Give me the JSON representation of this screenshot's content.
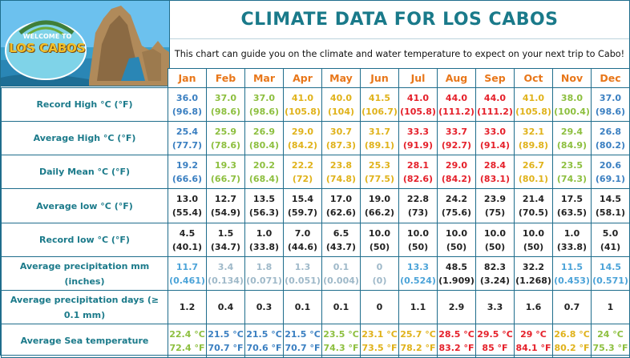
{
  "header": {
    "title": "CLIMATE DATA FOR LOS CABOS",
    "subtitle": "This chart can guide you on the climate and water temperature to expect on your next trip to Cabo!",
    "logo_top": "WELCOME TO",
    "logo_main": "LOS CABOS"
  },
  "months": [
    "Jan",
    "Feb",
    "Mar",
    "Apr",
    "May",
    "Jun",
    "Jul",
    "Aug",
    "Sep",
    "Oct",
    "Nov",
    "Dec"
  ],
  "colors": {
    "cool": "#3a7fc1",
    "mild": "#8dbf3f",
    "warm": "#e0b21a",
    "hot": "#e5202a",
    "dark": "#222222",
    "pale": "#9fb9c9",
    "month": "#e8771a",
    "label": "#1b7a8a"
  },
  "rows": [
    {
      "label": "Record High °C (°F)",
      "cells": [
        {
          "a": "36.0",
          "b": "(96.8)",
          "c": "cool"
        },
        {
          "a": "37.0",
          "b": "(98.6)",
          "c": "mild"
        },
        {
          "a": "37.0",
          "b": "(98.6)",
          "c": "mild"
        },
        {
          "a": "41.0",
          "b": "(105.8)",
          "c": "warm"
        },
        {
          "a": "40.0",
          "b": "(104)",
          "c": "warm"
        },
        {
          "a": "41.5",
          "b": "(106.7)",
          "c": "warm"
        },
        {
          "a": "41.0",
          "b": "(105.8)",
          "c": "hot"
        },
        {
          "a": "44.0",
          "b": "(111.2)",
          "c": "hot"
        },
        {
          "a": "44.0",
          "b": "(111.2)",
          "c": "hot"
        },
        {
          "a": "41.0",
          "b": "(105.8)",
          "c": "warm"
        },
        {
          "a": "38.0",
          "b": "(100.4)",
          "c": "mild"
        },
        {
          "a": "37.0",
          "b": "(98.6)",
          "c": "cool"
        }
      ]
    },
    {
      "label": "Average High °C (°F)",
      "cells": [
        {
          "a": "25.4",
          "b": "(77.7)",
          "c": "cool"
        },
        {
          "a": "25.9",
          "b": "(78.6)",
          "c": "mild"
        },
        {
          "a": "26.9",
          "b": "(80.4)",
          "c": "mild"
        },
        {
          "a": "29.0",
          "b": "(84.2)",
          "c": "warm"
        },
        {
          "a": "30.7",
          "b": "(87.3)",
          "c": "warm"
        },
        {
          "a": "31.7",
          "b": "(89.1)",
          "c": "warm"
        },
        {
          "a": "33.3",
          "b": "(91.9)",
          "c": "hot"
        },
        {
          "a": "33.7",
          "b": "(92.7)",
          "c": "hot"
        },
        {
          "a": "33.0",
          "b": "(91.4)",
          "c": "hot"
        },
        {
          "a": "32.1",
          "b": "(89.8)",
          "c": "warm"
        },
        {
          "a": "29.4",
          "b": "(84.9)",
          "c": "mild"
        },
        {
          "a": "26.8",
          "b": "(80.2)",
          "c": "cool"
        }
      ]
    },
    {
      "label": "Daily Mean °C (°F)",
      "cells": [
        {
          "a": "19.2",
          "b": "(66.6)",
          "c": "cool"
        },
        {
          "a": "19.3",
          "b": "(66.7)",
          "c": "mild"
        },
        {
          "a": "20.2",
          "b": "(68.4)",
          "c": "mild"
        },
        {
          "a": "22.2",
          "b": "(72)",
          "c": "warm"
        },
        {
          "a": "23.8",
          "b": "(74.8)",
          "c": "warm"
        },
        {
          "a": "25.3",
          "b": "(77.5)",
          "c": "warm"
        },
        {
          "a": "28.1",
          "b": "(82.6)",
          "c": "hot"
        },
        {
          "a": "29.0",
          "b": "(84.2)",
          "c": "hot"
        },
        {
          "a": "28.4",
          "b": "(83.1)",
          "c": "hot"
        },
        {
          "a": "26.7",
          "b": "(80.1)",
          "c": "warm"
        },
        {
          "a": "23.5",
          "b": "(74.3)",
          "c": "mild"
        },
        {
          "a": "20.6",
          "b": "(69.1)",
          "c": "cool"
        }
      ]
    },
    {
      "label": "Average low °C (°F)",
      "cells": [
        {
          "a": "13.0",
          "b": "(55.4)",
          "c": "dark"
        },
        {
          "a": "12.7",
          "b": "(54.9)",
          "c": "dark"
        },
        {
          "a": "13.5",
          "b": "(56.3)",
          "c": "dark"
        },
        {
          "a": "15.4",
          "b": "(59.7)",
          "c": "dark"
        },
        {
          "a": "17.0",
          "b": "(62.6)",
          "c": "dark"
        },
        {
          "a": "19.0",
          "b": "(66.2)",
          "c": "dark"
        },
        {
          "a": "22.8",
          "b": "(73)",
          "c": "dark"
        },
        {
          "a": "24.2",
          "b": "(75.6)",
          "c": "dark"
        },
        {
          "a": "23.9",
          "b": "(75)",
          "c": "dark"
        },
        {
          "a": "21.4",
          "b": "(70.5)",
          "c": "dark"
        },
        {
          "a": "17.5",
          "b": "(63.5)",
          "c": "dark"
        },
        {
          "a": "14.5",
          "b": "(58.1)",
          "c": "dark"
        }
      ]
    },
    {
      "label": "Record low °C (°F)",
      "cells": [
        {
          "a": "4.5",
          "b": "(40.1)",
          "c": "dark"
        },
        {
          "a": "1.5",
          "b": "(34.7)",
          "c": "dark"
        },
        {
          "a": "1.0",
          "b": "(33.8)",
          "c": "dark"
        },
        {
          "a": "7.0",
          "b": "(44.6)",
          "c": "dark"
        },
        {
          "a": "6.5",
          "b": "(43.7)",
          "c": "dark"
        },
        {
          "a": "10.0",
          "b": "(50)",
          "c": "dark"
        },
        {
          "a": "10.0",
          "b": "(50)",
          "c": "dark"
        },
        {
          "a": "10.0",
          "b": "(50)",
          "c": "dark"
        },
        {
          "a": "10.0",
          "b": "(50)",
          "c": "dark"
        },
        {
          "a": "10.0",
          "b": "(50)",
          "c": "dark"
        },
        {
          "a": "1.0",
          "b": "(33.8)",
          "c": "dark"
        },
        {
          "a": "5.0",
          "b": "(41)",
          "c": "dark"
        }
      ]
    },
    {
      "label": "Average precipitation mm (inches)",
      "cells": [
        {
          "a": "11.7",
          "b": "(0.461)",
          "c": "cool2"
        },
        {
          "a": "3.4",
          "b": "(0.134)",
          "c": "pale"
        },
        {
          "a": "1.8",
          "b": "(0.071)",
          "c": "pale"
        },
        {
          "a": "1.3",
          "b": "(0.051)",
          "c": "pale"
        },
        {
          "a": "0.1",
          "b": "(0.004)",
          "c": "pale"
        },
        {
          "a": "0",
          "b": "(0)",
          "c": "pale"
        },
        {
          "a": "13.3",
          "b": "(0.524)",
          "c": "cool2"
        },
        {
          "a": "48.5",
          "b": "(1.909)",
          "c": "dark"
        },
        {
          "a": "82.3",
          "b": "(3.24)",
          "c": "dark"
        },
        {
          "a": "32.2",
          "b": "(1.268)",
          "c": "dark"
        },
        {
          "a": "11.5",
          "b": "(0.453)",
          "c": "cool2"
        },
        {
          "a": "14.5",
          "b": "(0.571)",
          "c": "cool2"
        }
      ]
    },
    {
      "label": "Average precipitation days (≥ 0.1 mm)",
      "cells": [
        {
          "a": "1.2",
          "b": "",
          "c": "dark"
        },
        {
          "a": "0.4",
          "b": "",
          "c": "dark"
        },
        {
          "a": "0.3",
          "b": "",
          "c": "dark"
        },
        {
          "a": "0.1",
          "b": "",
          "c": "dark"
        },
        {
          "a": "0.1",
          "b": "",
          "c": "dark"
        },
        {
          "a": "0",
          "b": "",
          "c": "dark"
        },
        {
          "a": "1.1",
          "b": "",
          "c": "dark"
        },
        {
          "a": "2.9",
          "b": "",
          "c": "dark"
        },
        {
          "a": "3.3",
          "b": "",
          "c": "dark"
        },
        {
          "a": "1.6",
          "b": "",
          "c": "dark"
        },
        {
          "a": "0.7",
          "b": "",
          "c": "dark"
        },
        {
          "a": "1",
          "b": "",
          "c": "dark"
        }
      ]
    },
    {
      "label": "Average Sea temperature",
      "cells": [
        {
          "a": "22.4 °C",
          "b": "72.4 °F",
          "c": "mild"
        },
        {
          "a": "21.5 °C",
          "b": "70.7 °F",
          "c": "cool"
        },
        {
          "a": "21.5 °C",
          "b": "70.6 °F",
          "c": "cool"
        },
        {
          "a": "21.5 °C",
          "b": "70.7 °F",
          "c": "cool"
        },
        {
          "a": "23.5 °C",
          "b": "74.3 °F",
          "c": "mild"
        },
        {
          "a": "23.1 °C",
          "b": "73.5 °F",
          "c": "warm"
        },
        {
          "a": "25.7 °C",
          "b": "78.2 °F",
          "c": "warm"
        },
        {
          "a": "28.5 °C",
          "b": "83.2 °F",
          "c": "hot"
        },
        {
          "a": "29.5 °C",
          "b": "85 °F",
          "c": "hot"
        },
        {
          "a": "29 °C",
          "b": "84.1 °F",
          "c": "hot"
        },
        {
          "a": "26.8 °C",
          "b": "80.2 °F",
          "c": "warm"
        },
        {
          "a": "24 °C",
          "b": "75.3 °F",
          "c": "mild"
        }
      ]
    }
  ]
}
